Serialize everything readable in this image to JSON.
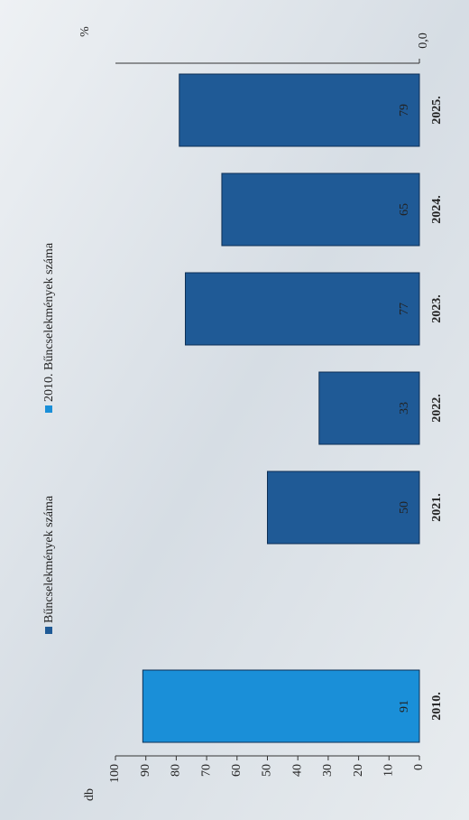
{
  "chart_data": {
    "type": "bar",
    "categories": [
      "2010.",
      null,
      "2021.",
      "2022.",
      "2023.",
      "2024.",
      "2025."
    ],
    "series": [
      {
        "name": "Bűncselekmények száma",
        "color": "#1f5a96",
        "values": [
          null,
          null,
          50,
          33,
          77,
          65,
          79
        ]
      },
      {
        "name": "2010. Bűncselekmények száma",
        "color": "#1a8fd8",
        "values": [
          91,
          null,
          null,
          null,
          null,
          null,
          null
        ]
      }
    ],
    "ylabel": "db",
    "y2label": "%",
    "ylim": [
      0,
      100
    ],
    "yticks": [
      0,
      10,
      20,
      30,
      40,
      50,
      60,
      70,
      80,
      90,
      100
    ],
    "y2lim": [
      0,
      100
    ],
    "y2ticks": [
      {
        "value": 0,
        "label": "0,0"
      }
    ],
    "legend": "top"
  }
}
